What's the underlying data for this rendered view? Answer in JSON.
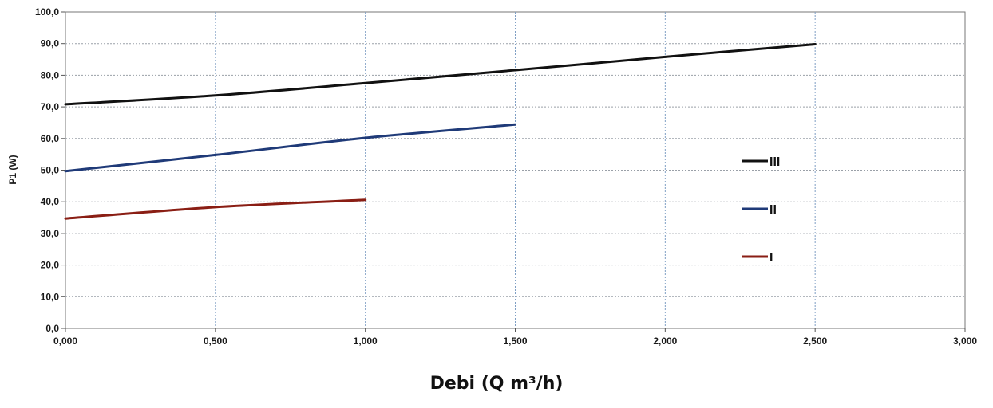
{
  "chart_data": {
    "type": "line",
    "title": "",
    "xlabel": "Debi (Q m³/h)",
    "ylabel": "P1 (W)",
    "xlim": [
      0,
      3
    ],
    "ylim": [
      0,
      100
    ],
    "x_ticks": [
      "0,000",
      "0,500",
      "1,000",
      "1,500",
      "2,000",
      "2,500",
      "3,000"
    ],
    "y_ticks": [
      "0,0",
      "10,0",
      "20,0",
      "30,0",
      "40,0",
      "50,0",
      "60,0",
      "70,0",
      "80,0",
      "90,0",
      "100,0"
    ],
    "grid": true,
    "legend_position": "right",
    "series": [
      {
        "name": "III",
        "color": "#111111",
        "x": [
          0,
          0.5,
          1.0,
          1.5,
          2.0,
          2.5
        ],
        "y": [
          70.8,
          73.6,
          77.5,
          81.6,
          85.8,
          89.8
        ]
      },
      {
        "name": "II",
        "color": "#1f3a78",
        "x": [
          0,
          0.5,
          1.0,
          1.5
        ],
        "y": [
          49.7,
          54.8,
          60.2,
          64.4
        ]
      },
      {
        "name": "I",
        "color": "#8a1e14",
        "x": [
          0,
          0.5,
          1.0
        ],
        "y": [
          34.7,
          38.3,
          40.6
        ]
      }
    ]
  }
}
